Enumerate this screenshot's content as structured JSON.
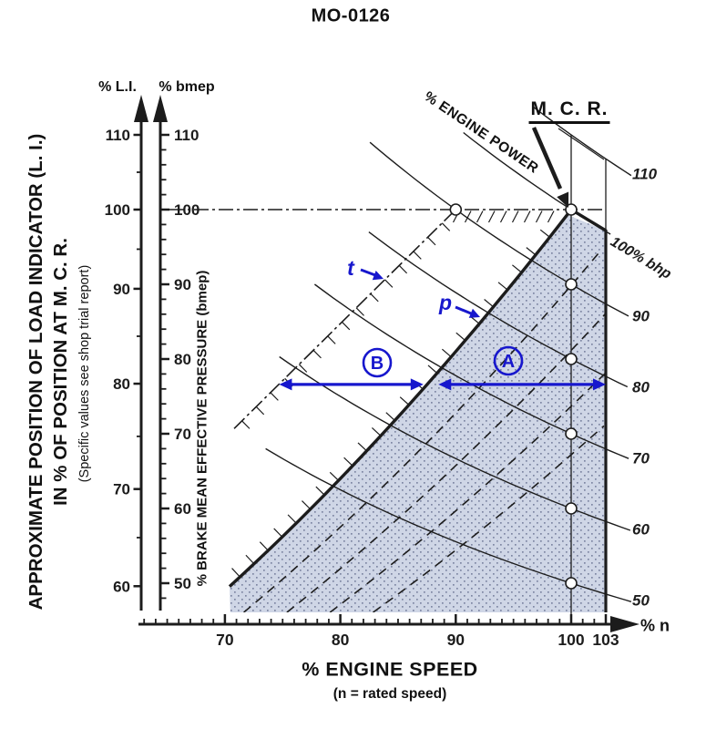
{
  "title": "MO-0126",
  "left_title_lines": [
    "APPROXIMATE POSITION OF LOAD INDICATOR (L. I.)",
    "IN % OF POSITION AT M. C. R.",
    "(Specific values see shop trial report)"
  ],
  "colors": {
    "line_black": "#1c1c1c",
    "annotation_blue": "#1717cd",
    "shade_fill": "#cfd6e6",
    "shade_dot": "#7d86a3"
  },
  "chart_data": {
    "type": "line",
    "title": "MO-0126",
    "x_axis": {
      "label": "% ENGINE SPEED",
      "sublabel": "(n = rated speed)",
      "unit": "% n",
      "major_ticks": [
        70,
        80,
        90,
        100,
        103
      ],
      "minor_tick_step": 1,
      "range": [
        63,
        105
      ]
    },
    "y_axis_bmep": {
      "header": "% bmep",
      "title": "% BRAKE MEAN EFFECTIVE PRESSURE (bmep)",
      "major_ticks": [
        110,
        100,
        90,
        80,
        70,
        60,
        50
      ],
      "minor_tick_step": 2,
      "range": [
        46,
        113
      ]
    },
    "y_axis_li": {
      "header": "% L.I.",
      "major_ticks": [
        110,
        100,
        90,
        80,
        70,
        60
      ],
      "tick_positions_bmep": [
        110,
        100,
        89.4,
        76.7,
        62.6,
        49.6
      ]
    },
    "power_lines": {
      "family_label": "% ENGINE POWER",
      "iso_power_values": [
        110,
        100,
        90,
        80,
        70,
        60,
        50
      ],
      "labels": [
        "110",
        "100% bhp",
        "90",
        "80",
        "70",
        "60",
        "50"
      ],
      "start_bmep": [
        113.8,
        110.3,
        109,
        97,
        90,
        80.3,
        68
      ],
      "marker_at_speed": 100,
      "extra_marker": {
        "speed": 90,
        "bmep": 100
      }
    },
    "mcr": {
      "label": "M. C. R.",
      "speed": 100,
      "bmep": 100
    },
    "limit_lines": {
      "torque_line": {
        "label": "t",
        "from": {
          "speed": 70.8,
          "bmep": 70.7
        },
        "to": {
          "speed": 90,
          "bmep": 100
        }
      },
      "propeller_line": {
        "label": "p",
        "law": "bmep = 100*(n/100)^2",
        "from_speed": 70.4,
        "to_speed": 100
      },
      "max_bmep": 100
    },
    "zones": {
      "b": {
        "label": "B",
        "arrow_bmep": 76.6,
        "arrow_from_speed": 74.7,
        "arrow_to_speed": 87.2
      },
      "a": {
        "label": "A",
        "arrow_bmep": 76.6,
        "arrow_from_speed": 88.5,
        "arrow_to_speed": 103
      }
    },
    "shaded_region": {
      "right_speed_limit": 103,
      "bottom_bmep": 46.1,
      "dashed_propeller_rate_speeds": [
        105.5,
        111,
        116.5,
        122
      ]
    }
  }
}
